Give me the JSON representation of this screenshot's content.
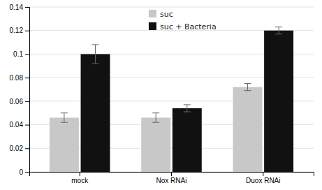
{
  "chart_data": {
    "type": "bar",
    "categories": [
      "mock",
      "Nox RNAi",
      "Duox RNAi"
    ],
    "series": [
      {
        "name": "suc",
        "color": "#c8c8c8",
        "values": [
          0.046,
          0.046,
          0.072
        ],
        "errors": [
          0.004,
          0.004,
          0.003
        ]
      },
      {
        "name": "suc + Bacteria",
        "color": "#111111",
        "values": [
          0.1,
          0.054,
          0.12
        ],
        "errors": [
          0.008,
          0.003,
          0.003
        ]
      }
    ],
    "ylim": [
      0,
      0.14
    ],
    "yticks": [
      0,
      0.02,
      0.04,
      0.06,
      0.08,
      0.1,
      0.12,
      0.14
    ],
    "grid": true,
    "legend": "top"
  }
}
